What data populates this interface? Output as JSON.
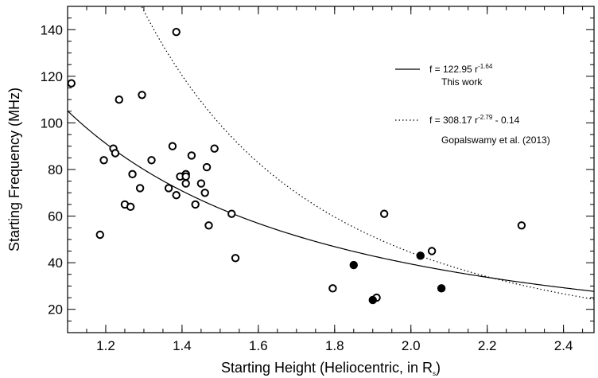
{
  "chart_data": {
    "type": "scatter",
    "xlabel": "Starting Height (Heliocentric, in R",
    "xlabel_sub": "s",
    "xlabel_close": ")",
    "ylabel": "Starting Frequency (MHz)",
    "xlim": [
      1.1,
      2.48
    ],
    "ylim": [
      10,
      150
    ],
    "x_ticks": [
      1.2,
      1.4,
      1.6,
      1.8,
      2.0,
      2.2,
      2.4
    ],
    "x_tick_labels": [
      "1.2",
      "1.4",
      "1.6",
      "1.8",
      "2.0",
      "2.2",
      "2.4"
    ],
    "y_ticks": [
      20,
      40,
      60,
      80,
      100,
      120,
      140
    ],
    "y_tick_labels": [
      "20",
      "40",
      "60",
      "80",
      "100",
      "120",
      "140"
    ],
    "grid": false,
    "legend_placement": "top-right",
    "series": [
      {
        "marker": "open-circle",
        "color": "#000000",
        "points": [
          [
            1.11,
            117
          ],
          [
            1.185,
            52
          ],
          [
            1.195,
            84
          ],
          [
            1.22,
            89
          ],
          [
            1.225,
            87
          ],
          [
            1.235,
            110
          ],
          [
            1.25,
            65
          ],
          [
            1.265,
            64
          ],
          [
            1.27,
            78
          ],
          [
            1.29,
            72
          ],
          [
            1.295,
            112
          ],
          [
            1.32,
            84
          ],
          [
            1.365,
            72
          ],
          [
            1.375,
            90
          ],
          [
            1.385,
            139
          ],
          [
            1.385,
            69
          ],
          [
            1.395,
            77
          ],
          [
            1.41,
            78
          ],
          [
            1.41,
            74
          ],
          [
            1.41,
            77
          ],
          [
            1.425,
            86
          ],
          [
            1.435,
            65
          ],
          [
            1.45,
            74
          ],
          [
            1.46,
            70
          ],
          [
            1.465,
            81
          ],
          [
            1.47,
            56
          ],
          [
            1.485,
            89
          ],
          [
            1.53,
            61
          ],
          [
            1.54,
            42
          ],
          [
            1.795,
            29
          ],
          [
            1.91,
            25
          ],
          [
            1.93,
            61
          ],
          [
            2.055,
            45
          ],
          [
            2.29,
            56
          ]
        ]
      },
      {
        "marker": "filled-circle",
        "color": "#000000",
        "points": [
          [
            1.85,
            39
          ],
          [
            1.9,
            24
          ],
          [
            2.025,
            43
          ],
          [
            2.08,
            29
          ]
        ]
      }
    ],
    "fits": [
      {
        "style": "solid",
        "a": 122.95,
        "b": 1.64,
        "c": 0,
        "eq_prefix": "f = 122.95 r",
        "eq_exp": "-1.64",
        "eq_suffix": "",
        "label": "This work"
      },
      {
        "style": "dotted",
        "a": 308.17,
        "b": 2.79,
        "c": -0.14,
        "eq_prefix": "f = 308.17 r",
        "eq_exp": "-2.79",
        "eq_suffix": " - 0.14",
        "label": "Gopalswamy et al. (2013)"
      }
    ]
  }
}
